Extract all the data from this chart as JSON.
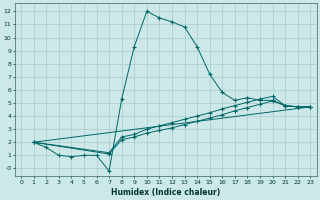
{
  "xlabel": "Humidex (Indice chaleur)",
  "bg_color": "#cce8e8",
  "line_color": "#006666",
  "grid_color": "#aacccc",
  "xlim": [
    -0.5,
    23.5
  ],
  "ylim": [
    -0.6,
    12.6
  ],
  "yticks": [
    0,
    1,
    2,
    3,
    4,
    5,
    6,
    7,
    8,
    9,
    10,
    11,
    12
  ],
  "ytick_labels": [
    "-0",
    "1",
    "2",
    "3",
    "4",
    "5",
    "6",
    "7",
    "8",
    "9",
    "10",
    "11",
    "12"
  ],
  "xticks": [
    0,
    1,
    2,
    3,
    4,
    5,
    6,
    7,
    8,
    9,
    10,
    11,
    12,
    13,
    14,
    15,
    16,
    17,
    18,
    19,
    20,
    21,
    22,
    23
  ],
  "series": [
    {
      "x": [
        1,
        2,
        3,
        4,
        5,
        6,
        7,
        8,
        9,
        10,
        11,
        12,
        13,
        14,
        15,
        16,
        17,
        18,
        19,
        20,
        21,
        22,
        23
      ],
      "y": [
        2.0,
        1.6,
        1.0,
        0.9,
        1.0,
        1.0,
        -0.2,
        5.3,
        9.3,
        12.0,
        11.5,
        11.2,
        10.8,
        9.3,
        7.2,
        5.8,
        5.2,
        5.4,
        5.2,
        5.2,
        4.8,
        4.7,
        4.7
      ]
    },
    {
      "x": [
        1,
        7,
        8,
        9,
        10,
        11,
        12,
        13,
        14,
        15,
        16,
        17,
        18,
        19,
        20,
        21,
        22,
        23
      ],
      "y": [
        2.0,
        1.1,
        2.2,
        2.4,
        2.7,
        2.9,
        3.1,
        3.35,
        3.6,
        3.85,
        4.1,
        4.4,
        4.65,
        4.9,
        5.15,
        4.8,
        4.7,
        4.7
      ]
    },
    {
      "x": [
        1,
        7,
        8,
        9,
        10,
        11,
        12,
        13,
        14,
        15,
        16,
        17,
        18,
        19,
        20,
        21,
        22,
        23
      ],
      "y": [
        2.0,
        1.2,
        2.4,
        2.6,
        3.0,
        3.25,
        3.5,
        3.75,
        4.0,
        4.25,
        4.55,
        4.8,
        5.05,
        5.3,
        5.5,
        4.8,
        4.7,
        4.7
      ]
    },
    {
      "x": [
        1,
        23
      ],
      "y": [
        2.0,
        4.7
      ]
    }
  ]
}
